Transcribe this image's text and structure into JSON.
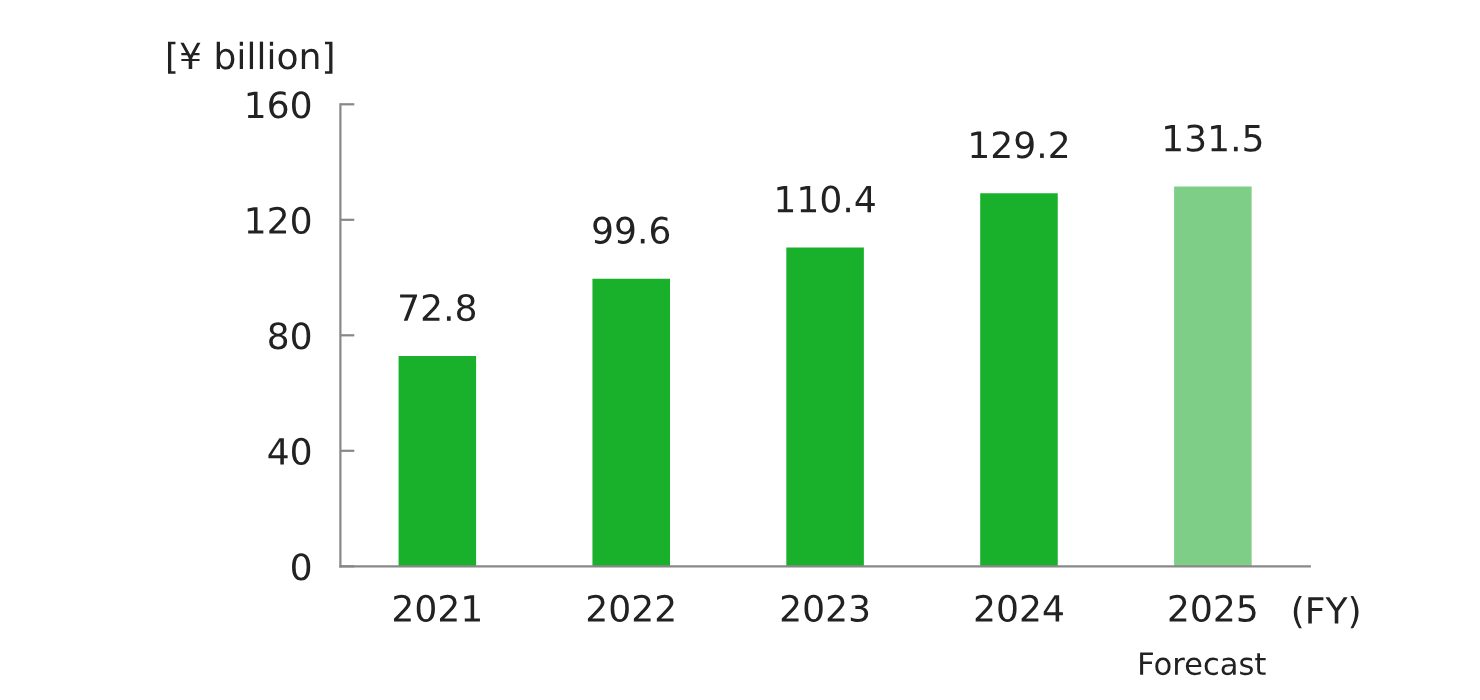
{
  "chart_data": {
    "type": "bar",
    "ylabel": "[¥ billion]",
    "xlabel": "(FY)",
    "categories": [
      "2021",
      "2022",
      "2023",
      "2024",
      "2025"
    ],
    "values": [
      72.8,
      99.6,
      110.4,
      129.2,
      131.5
    ],
    "colors": [
      "#19b02b",
      "#19b02b",
      "#19b02b",
      "#19b02b",
      "#7fce88"
    ],
    "ylim": [
      0,
      160
    ],
    "yticks": [
      0,
      40,
      80,
      120,
      160
    ],
    "data_labels": true,
    "grid": false,
    "legend": false,
    "annotations": [
      "Forecast"
    ]
  }
}
